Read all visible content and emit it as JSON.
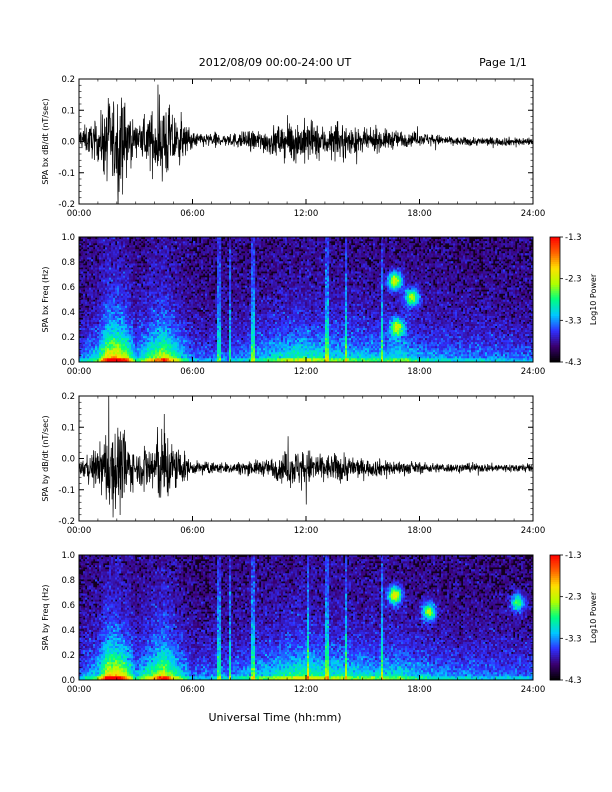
{
  "header": {
    "title": "2012/08/09   00:00-24:00 UT",
    "page": "Page 1/1"
  },
  "footer": {
    "xlabel": "Universal Time (hh:mm)"
  },
  "colorbar": {
    "ticks": [
      "-1.3",
      "-2.3",
      "-3.3",
      "-4.3"
    ],
    "tick_values": [
      -1.3,
      -2.3,
      -3.3,
      -4.3
    ],
    "label": "Log10 Power",
    "colors": [
      "#000000",
      "#3a0070",
      "#3030ff",
      "#00c8ff",
      "#00ff80",
      "#b0ff00",
      "#ffe000",
      "#ff6000",
      "#ff0000"
    ]
  },
  "chart_data": [
    {
      "type": "line",
      "ylabel": "SPA bx dB/dt (nT/sec)",
      "ylim": [
        -0.2,
        0.2
      ],
      "yticks": [
        "0.2",
        "0.1",
        "0.0",
        "-0.1",
        "-0.2"
      ],
      "ytick_values": [
        0.2,
        0.1,
        0.0,
        -0.1,
        -0.2
      ],
      "xlim": [
        0,
        24
      ],
      "xticks": [
        "00:00",
        "06:00",
        "12:00",
        "18:00",
        "24:00"
      ],
      "xtick_values": [
        0,
        6,
        12,
        18,
        24
      ],
      "x_hours": [
        0,
        1,
        1.5,
        2,
        2.5,
        3,
        4,
        4.5,
        5,
        6,
        8,
        10,
        11,
        12,
        13,
        14,
        15,
        16,
        18,
        20,
        24
      ],
      "envelope": [
        0.05,
        0.09,
        0.2,
        0.22,
        0.18,
        0.06,
        0.15,
        0.2,
        0.14,
        0.035,
        0.03,
        0.06,
        0.09,
        0.1,
        0.07,
        0.08,
        0.05,
        0.05,
        0.03,
        0.02,
        0.02
      ],
      "offset": [
        0.01,
        0.0,
        0.0,
        0.0,
        0.0,
        0.01,
        0.0,
        0.0,
        0.0,
        0.005,
        0.005,
        0.0,
        0.0,
        0.0,
        0.0,
        0.0,
        0.0,
        0.005,
        0.01,
        0.0,
        0.0
      ]
    },
    {
      "type": "heatmap",
      "ylabel": "SPA bx Freq (Hz)",
      "ylim": [
        0.0,
        1.0
      ],
      "yticks": [
        "1.0",
        "0.8",
        "0.6",
        "0.4",
        "0.2",
        "0.0"
      ],
      "ytick_values": [
        1.0,
        0.8,
        0.6,
        0.4,
        0.2,
        0.0
      ],
      "xlim": [
        0,
        24
      ],
      "xticks": [
        "00:00",
        "06:00",
        "12:00",
        "18:00",
        "24:00"
      ],
      "xtick_values": [
        0,
        6,
        12,
        18,
        24
      ],
      "zlim": [
        -4.3,
        -1.3
      ],
      "x_hours": [
        0,
        1,
        1.5,
        2,
        2.5,
        3,
        4,
        4.5,
        5,
        6,
        8,
        10,
        11,
        12,
        13,
        14,
        15,
        16,
        17,
        18,
        20,
        24
      ],
      "activity": [
        0.25,
        0.45,
        0.95,
        1.0,
        0.8,
        0.35,
        0.7,
        0.85,
        0.6,
        0.25,
        0.25,
        0.4,
        0.5,
        0.55,
        0.45,
        0.45,
        0.4,
        0.4,
        0.45,
        0.35,
        0.3,
        0.25
      ],
      "lines_hours": [
        7.4,
        8.0,
        9.2,
        13.1,
        14.1,
        16.0
      ],
      "blobs": [
        {
          "x_hour": 16.7,
          "y_hz": 0.65,
          "level": 0.55
        },
        {
          "x_hour": 17.6,
          "y_hz": 0.52,
          "level": 0.45
        },
        {
          "x_hour": 16.8,
          "y_hz": 0.28,
          "level": 0.45
        }
      ]
    },
    {
      "type": "line",
      "ylabel": "SPA by dB/dt (nT/sec)",
      "ylim": [
        -0.2,
        0.2
      ],
      "yticks": [
        "0.2",
        "0.1",
        "0.0",
        "-0.1",
        "-0.2"
      ],
      "ytick_values": [
        0.2,
        0.1,
        0.0,
        -0.1,
        -0.2
      ],
      "xlim": [
        0,
        24
      ],
      "xticks": [
        "00:00",
        "06:00",
        "12:00",
        "18:00",
        "24:00"
      ],
      "xtick_values": [
        0,
        6,
        12,
        18,
        24
      ],
      "x_hours": [
        0,
        1,
        1.5,
        2,
        2.5,
        3,
        4,
        4.5,
        5,
        6,
        8,
        10,
        11,
        12,
        13,
        14,
        15,
        16,
        18,
        20,
        24
      ],
      "envelope": [
        0.03,
        0.09,
        0.2,
        0.22,
        0.16,
        0.06,
        0.15,
        0.2,
        0.12,
        0.03,
        0.025,
        0.04,
        0.08,
        0.09,
        0.06,
        0.07,
        0.04,
        0.04,
        0.025,
        0.02,
        0.02
      ],
      "offset": [
        -0.03,
        -0.03,
        -0.03,
        -0.03,
        -0.03,
        -0.03,
        -0.03,
        -0.03,
        -0.03,
        -0.03,
        -0.03,
        -0.03,
        -0.03,
        -0.03,
        -0.03,
        -0.03,
        -0.03,
        -0.03,
        -0.03,
        -0.03,
        -0.03
      ]
    },
    {
      "type": "heatmap",
      "ylabel": "SPA by Freq (Hz)",
      "ylim": [
        0.0,
        1.0
      ],
      "yticks": [
        "1.0",
        "0.8",
        "0.6",
        "0.4",
        "0.2",
        "0.0"
      ],
      "ytick_values": [
        1.0,
        0.8,
        0.6,
        0.4,
        0.2,
        0.0
      ],
      "xlim": [
        0,
        24
      ],
      "xticks": [
        "00:00",
        "06:00",
        "12:00",
        "18:00",
        "24:00"
      ],
      "xtick_values": [
        0,
        6,
        12,
        18,
        24
      ],
      "zlim": [
        -4.3,
        -1.3
      ],
      "x_hours": [
        0,
        1,
        1.5,
        2,
        2.5,
        3,
        4,
        4.5,
        5,
        6,
        8,
        10,
        11,
        12,
        13,
        14,
        15,
        16,
        17,
        18,
        20,
        24
      ],
      "activity": [
        0.25,
        0.45,
        0.95,
        1.0,
        0.75,
        0.35,
        0.7,
        0.9,
        0.6,
        0.25,
        0.3,
        0.45,
        0.55,
        0.6,
        0.5,
        0.5,
        0.45,
        0.45,
        0.45,
        0.35,
        0.3,
        0.25
      ],
      "lines_hours": [
        7.4,
        8.0,
        9.2,
        12.1,
        13.1,
        14.1,
        16.0
      ],
      "blobs": [
        {
          "x_hour": 16.7,
          "y_hz": 0.68,
          "level": 0.55
        },
        {
          "x_hour": 18.5,
          "y_hz": 0.55,
          "level": 0.45
        },
        {
          "x_hour": 23.2,
          "y_hz": 0.62,
          "level": 0.4
        }
      ]
    }
  ]
}
